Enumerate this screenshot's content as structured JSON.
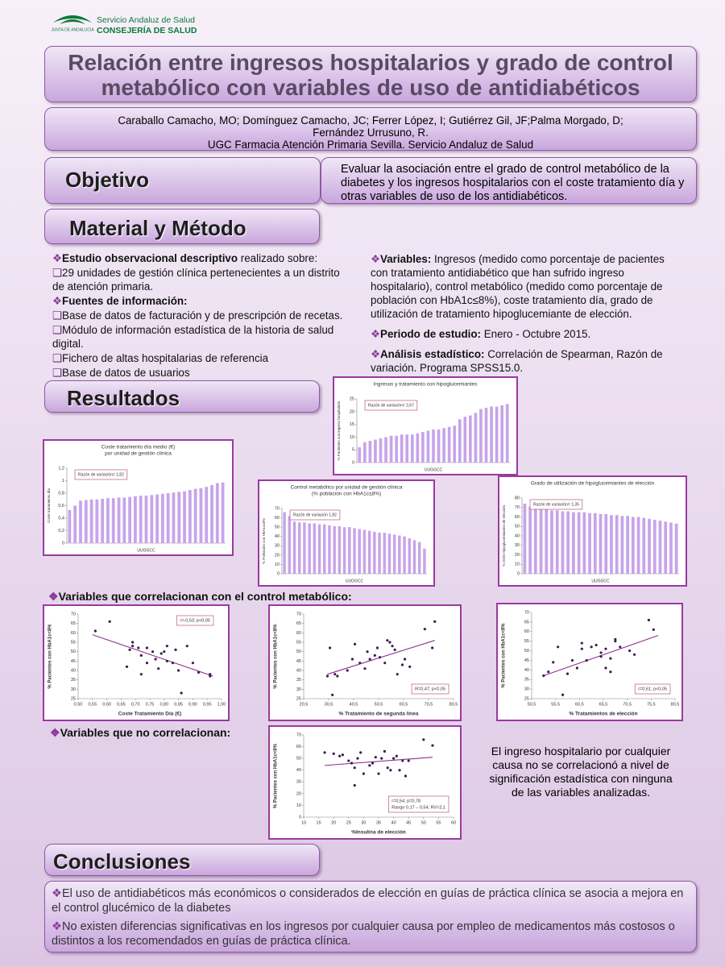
{
  "header": {
    "org_line1": "Servicio Andaluz de Salud",
    "org_line2": "CONSEJERÍA DE SALUD",
    "logo_text": "JUNTA DE ANDALUCIA"
  },
  "title": [
    "Relación entre ingresos hospitalarios y grado de control",
    "metabólico con variables de uso de antidiabéticos"
  ],
  "authors": [
    "Caraballo Camacho, MO; Domínguez Camacho, JC; Ferrer López, I; Gutiérrez Gil, JF;Palma Morgado, D;",
    "Fernández Urrusuno, R.",
    "UGC Farmacia  Atención Primaria Sevilla. Servicio Andaluz de Salud"
  ],
  "objective": {
    "heading": "Objetivo",
    "text": "Evaluar la asociación entre el grado de control metabólico de la diabetes y los ingresos hospitalarios con el coste tratamiento día y otras variables de uso de los antidiabéticos."
  },
  "method": {
    "heading": "Material y Método",
    "left": [
      {
        "bold": "Estudio observacional descriptivo",
        "text": " realizado sobre:"
      },
      {
        "text": "29 unidades de gestión clínica pertenecientes a un distrito de atención primaria."
      },
      {
        "bold": "Fuentes de información:"
      },
      {
        "text": "Base de datos de facturación y de prescripción de recetas."
      },
      {
        "text": "Módulo de información estadística de la historia de salud digital."
      },
      {
        "text": "Fichero de altas hospitalarias  de referencia"
      },
      {
        "text": "Base de datos de usuarios"
      }
    ],
    "right": [
      {
        "bold": "Variables:",
        "text": " Ingresos (medido como porcentaje de pacientes con tratamiento antidiabético que han sufrido ingreso hospitalario), control metabólico (medido como porcentaje de población con HbA1c≤8%), coste tratamiento día, grado de utilización de tratamiento hipoglucemiante de elección."
      },
      {
        "bold": "Periodo de estudio:",
        "text": " Enero - Octubre 2015."
      },
      {
        "bold": "Análisis estadístico:",
        "text": " Correlación de Spearman, Razón de variación. Programa SPSS15.0."
      }
    ]
  },
  "results": {
    "heading": "Resultados",
    "correlated": "Variables que correlacionan con el control metabólico:",
    "not_correlated": "Variables que no correlacionan:",
    "note": "El ingreso hospitalario por cualquier causa no se correlacionó a nivel de significación estadística con ninguna de las variables analizadas."
  },
  "conclusions": {
    "heading": "Conclusiones",
    "items": [
      "El uso de antidiabéticos más económicos o considerados de elección en guías de práctica clínica se asocia a mejora en el control glucémico de la diabetes",
      "No existen diferencias significativas en los ingresos por cualquier causa por empleo de medicamentos más costosos o distintos a los recomendados en guías de práctica clínica."
    ]
  },
  "chart_data": [
    {
      "type": "bar",
      "title": [
        "Ingresos y  tratamiento con hipoglucemiantes"
      ],
      "annotation": [
        "Razón de variación= 2,67"
      ],
      "ylabel": "% Pacientes con ingreso hospitalario",
      "xlabel": "UUGGCC",
      "color": "#c7a4ea",
      "ylim": [
        0,
        25
      ],
      "yticks": [
        0,
        5,
        10,
        15,
        20,
        25
      ],
      "values": [
        6,
        8,
        8.5,
        9,
        9.5,
        10,
        10.5,
        10.5,
        11,
        11,
        11,
        11.5,
        12,
        12.5,
        13,
        13,
        13.5,
        14,
        14.5,
        17,
        18,
        18.5,
        19.5,
        21,
        21.5,
        22,
        22,
        22.5,
        23
      ]
    },
    {
      "type": "bar",
      "title": [
        "Coste tratamiento día medio (€)",
        "por unidad de gestión clínica"
      ],
      "annotation": [
        "Razón de variación= 1,82"
      ],
      "ylabel": "Coste tratamiento día",
      "xlabel": "UUGGCC",
      "color": "#c7a4ea",
      "ylim": [
        0,
        1.2
      ],
      "yticks": [
        0,
        {
          "value": 0.2,
          "label": "0,2"
        },
        {
          "value": 0.4,
          "label": "0,4"
        },
        {
          "value": 0.6,
          "label": "0,6"
        },
        {
          "value": 0.8,
          "label": "0,8"
        },
        1,
        {
          "value": 1.2,
          "label": "1,2"
        }
      ],
      "values": [
        0.53,
        0.6,
        0.68,
        0.69,
        0.7,
        0.7,
        0.71,
        0.72,
        0.72,
        0.73,
        0.73,
        0.74,
        0.75,
        0.76,
        0.76,
        0.77,
        0.78,
        0.79,
        0.8,
        0.81,
        0.82,
        0.83,
        0.85,
        0.87,
        0.88,
        0.9,
        0.93,
        0.96,
        0.97
      ]
    },
    {
      "type": "bar",
      "title": [
        "Control metabólico por unidad de gestión clínica",
        "(% población con HbA1c≤8%)"
      ],
      "annotation": [
        "Razón de variación 1,82"
      ],
      "ylabel": "% Población con HbA1c≤8%",
      "xlabel": "UUGGCC",
      "color": "#c7a4ea",
      "ylim": [
        0,
        70
      ],
      "yticks": [
        0,
        10,
        20,
        30,
        40,
        50,
        60,
        70
      ],
      "values": [
        66,
        62,
        56,
        55,
        55,
        54,
        54,
        53,
        53,
        52,
        51,
        51,
        50,
        50,
        49,
        48,
        47,
        46,
        45,
        44,
        44,
        43,
        42,
        41,
        40,
        38,
        36,
        34,
        27
      ]
    },
    {
      "type": "bar",
      "title": [
        "Grado de utilización de hipoglucemiantes de elección"
      ],
      "annotation": [
        "Razón de variación= 1,35"
      ],
      "ylabel": "% DDD Hipoglucemiantes de elección",
      "xlabel": "UUGGCC",
      "color": "#c7a4ea",
      "ylim": [
        0,
        80
      ],
      "yticks": [
        0,
        10,
        20,
        30,
        40,
        50,
        60,
        70,
        80
      ],
      "values": [
        74,
        71,
        69,
        68,
        68,
        67,
        67,
        66,
        66,
        65,
        65,
        65,
        64,
        64,
        63,
        63,
        62,
        62,
        61,
        61,
        60,
        60,
        59,
        58,
        57,
        56,
        55,
        54,
        53
      ]
    },
    {
      "type": "scatter",
      "annotation": [
        "r=-0,53; p<0,05"
      ],
      "annotation_pos": "top-right",
      "ylabel": "% Pacientes con HbA1c<8%",
      "xlabel": "Coste Tratamiento Día (€)",
      "color": "#3b1f4f",
      "trend_color": "#8b2f8f",
      "ylim": [
        25,
        70
      ],
      "yticks": [
        25,
        30,
        35,
        40,
        45,
        50,
        55,
        60,
        65,
        70
      ],
      "xlim": [
        0.5,
        1
      ],
      "xticks": [
        {
          "value": 0.5,
          "label": "0,50"
        },
        {
          "value": 0.55,
          "label": "0,55"
        },
        {
          "value": 0.6,
          "label": "0,60"
        },
        {
          "value": 0.65,
          "label": "0,65"
        },
        {
          "value": 0.7,
          "label": "0,70"
        },
        {
          "value": 0.75,
          "label": "0,75"
        },
        {
          "value": 0.8,
          "label": "0,80"
        },
        {
          "value": 0.85,
          "label": "0,85"
        },
        {
          "value": 0.9,
          "label": "0,90"
        },
        {
          "value": 0.95,
          "label": "0,95"
        },
        {
          "value": 1,
          "label": "1,00"
        }
      ],
      "x": [
        0.56,
        0.61,
        0.67,
        0.68,
        0.69,
        0.69,
        0.71,
        0.72,
        0.72,
        0.74,
        0.74,
        0.76,
        0.77,
        0.78,
        0.79,
        0.8,
        0.81,
        0.81,
        0.83,
        0.84,
        0.85,
        0.86,
        0.88,
        0.9,
        0.92,
        0.96,
        0.96
      ],
      "values": [
        61,
        66,
        42,
        51,
        55,
        53,
        52,
        38,
        48,
        52,
        44,
        50,
        46,
        41,
        49,
        50,
        45,
        53,
        44,
        51,
        40,
        28,
        53,
        44,
        39,
        37,
        38
      ],
      "trend": {
        "x": [
          0.55,
          0.97
        ],
        "values": [
          59,
          37
        ]
      }
    },
    {
      "type": "scatter",
      "annotation": [
        "R=0,47; p<0,05"
      ],
      "annotation_pos": "bottom-right",
      "ylabel": "% Pacientes con HbA1c<8%",
      "xlabel": "% Tratamiento de segunda línea",
      "color": "#3b1f4f",
      "trend_color": "#8b2f8f",
      "ylim": [
        25,
        70
      ],
      "yticks": [
        25,
        30,
        35,
        40,
        45,
        50,
        55,
        60,
        65,
        70
      ],
      "xlim": [
        20.5,
        80.5
      ],
      "xticks": [
        {
          "value": 20.5,
          "label": "20,5"
        },
        {
          "value": 30.5,
          "label": "30,5"
        },
        {
          "value": 40.5,
          "label": "40,5"
        },
        {
          "value": 50.5,
          "label": "50,5"
        },
        {
          "value": 60.5,
          "label": "60,5"
        },
        {
          "value": 70.5,
          "label": "70,5"
        },
        {
          "value": 80.5,
          "label": "80,5"
        }
      ],
      "x": [
        30,
        31,
        32,
        33,
        34,
        38,
        40,
        41,
        43,
        45,
        46,
        47,
        49,
        50,
        51,
        53,
        54,
        55,
        56,
        57,
        58,
        60,
        61,
        63,
        69,
        72,
        73
      ],
      "values": [
        37,
        52,
        27,
        38,
        37,
        40,
        46,
        54,
        44,
        41,
        50,
        46,
        48,
        52,
        47,
        44,
        56,
        55,
        53,
        51,
        38,
        43,
        46,
        42,
        62,
        52,
        66
      ],
      "trend": {
        "x": [
          30,
          73
        ],
        "values": [
          38,
          56
        ]
      }
    },
    {
      "type": "scatter",
      "annotation": [
        "r=0,61; p<0,05"
      ],
      "annotation_pos": "bottom-right",
      "ylabel": "% Pacientes con HbA1c<8%",
      "xlabel": "% Tratamientos de elección",
      "color": "#3b1f4f",
      "trend_color": "#8b2f8f",
      "ylim": [
        25,
        70
      ],
      "yticks": [
        25,
        30,
        35,
        40,
        45,
        50,
        55,
        60,
        65,
        70
      ],
      "xlim": [
        50.5,
        80.5
      ],
      "xticks": [
        {
          "value": 50.5,
          "label": "50,5"
        },
        {
          "value": 55.5,
          "label": "55,5"
        },
        {
          "value": 60.5,
          "label": "60,5"
        },
        {
          "value": 65.5,
          "label": "65,5"
        },
        {
          "value": 70.5,
          "label": "70,5"
        },
        {
          "value": 75.5,
          "label": "75,5"
        },
        {
          "value": 80.5,
          "label": "80,5"
        }
      ],
      "x": [
        53,
        54,
        55,
        56,
        57,
        58,
        59,
        60,
        61,
        61,
        62,
        63,
        64,
        65,
        65,
        66,
        66,
        67,
        67,
        68,
        68,
        69,
        71,
        72,
        75,
        76
      ],
      "values": [
        37,
        39,
        44,
        52,
        27,
        38,
        45,
        41,
        51,
        54,
        45,
        52,
        53,
        47,
        49,
        41,
        51,
        46,
        39,
        55,
        56,
        52,
        50,
        48,
        66,
        61
      ],
      "trend": {
        "x": [
          53,
          77
        ],
        "values": [
          37,
          58
        ]
      }
    },
    {
      "type": "scatter",
      "annotation": [
        "r=0,54; p=0,78",
        "Rango 0,17 – 0,54; RV=2,1"
      ],
      "annotation_pos": "bottom-right",
      "ylabel": "% Pacientes con HbA1c<8%",
      "xlabel": "%Insulina de elección",
      "color": "#3b1f4f",
      "trend_color": "#8b2f8f",
      "ylim": [
        0,
        70
      ],
      "yticks": [
        0,
        10,
        20,
        30,
        40,
        50,
        60,
        70
      ],
      "xlim": [
        10,
        60
      ],
      "xticks": [
        10,
        15,
        20,
        25,
        30,
        35,
        40,
        45,
        50,
        55,
        60
      ],
      "x": [
        17,
        20,
        22,
        23,
        25,
        26,
        27,
        27,
        28,
        29,
        30,
        32,
        33,
        34,
        35,
        36,
        37,
        38,
        39,
        40,
        41,
        42,
        43,
        44,
        45,
        50,
        53
      ],
      "values": [
        55,
        54,
        52,
        53,
        48,
        46,
        27,
        42,
        50,
        55,
        37,
        44,
        46,
        51,
        37,
        50,
        56,
        42,
        40,
        50,
        52,
        40,
        48,
        35,
        48,
        66,
        61
      ],
      "trend": {
        "x": [
          17,
          53
        ],
        "values": [
          44,
          51
        ]
      }
    }
  ]
}
